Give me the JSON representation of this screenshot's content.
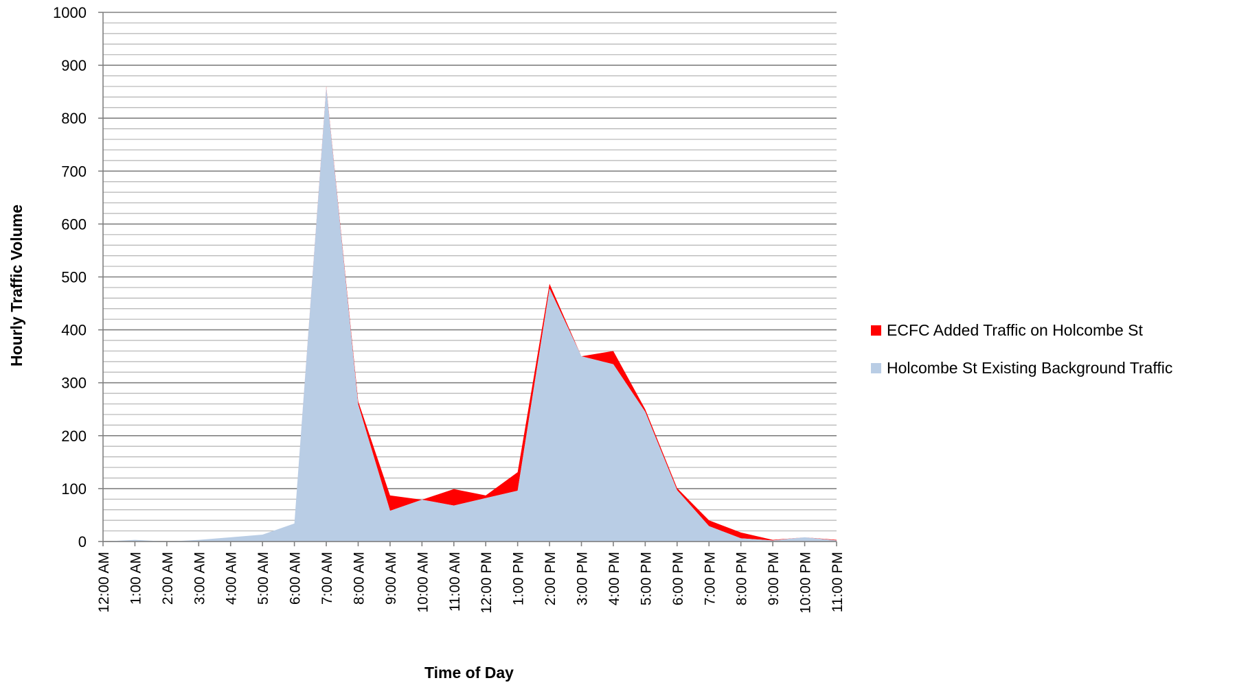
{
  "chart_data": {
    "type": "area",
    "stacked": true,
    "title": "",
    "xlabel": "Time of Day",
    "ylabel": "Hourly Traffic Volume",
    "ylim": [
      0,
      1000
    ],
    "ytick_step": 100,
    "minor_grid_step": 20,
    "grid": true,
    "legend_position": "right",
    "categories": [
      "12:00 AM",
      "1:00 AM",
      "2:00 AM",
      "3:00 AM",
      "4:00 AM",
      "5:00 AM",
      "6:00 AM",
      "7:00 AM",
      "8:00 AM",
      "9:00 AM",
      "10:00 AM",
      "11:00 AM",
      "12:00 PM",
      "1:00 PM",
      "2:00 PM",
      "3:00 PM",
      "4:00 PM",
      "5:00 PM",
      "6:00 PM",
      "7:00 PM",
      "8:00 PM",
      "9:00 PM",
      "10:00 PM",
      "11:00 PM"
    ],
    "series": [
      {
        "name": "Holcombe St Existing Background Traffic",
        "color": "#b9cde5",
        "values": [
          0,
          3,
          0,
          3,
          8,
          13,
          34,
          858,
          259,
          58,
          79,
          68,
          82,
          96,
          478,
          350,
          335,
          245,
          97,
          29,
          6,
          2,
          8,
          2
        ]
      },
      {
        "name": "ECFC Added Traffic on Holcombe St",
        "color": "#ff0000",
        "values": [
          0,
          0,
          0,
          0,
          0,
          0,
          0,
          2,
          6,
          29,
          0,
          31,
          5,
          35,
          9,
          0,
          25,
          5,
          4,
          11,
          11,
          1,
          0,
          1
        ]
      }
    ],
    "legend": [
      {
        "label": "ECFC Added Traffic on Holcombe St",
        "color": "#ff0000"
      },
      {
        "label": "Holcombe St Existing Background Traffic",
        "color": "#b9cde5"
      }
    ]
  }
}
